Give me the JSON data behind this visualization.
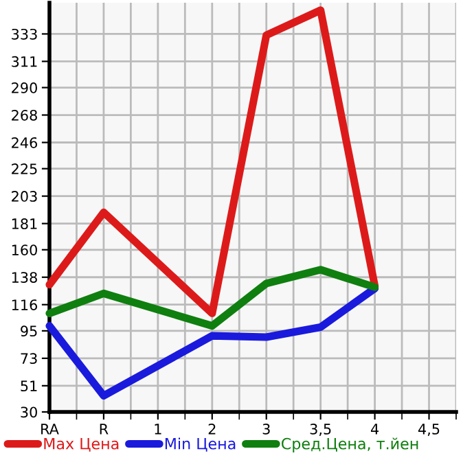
{
  "chart_data": {
    "type": "line",
    "categories": [
      "RA",
      "R",
      "1",
      "2",
      "3",
      "3,5",
      "4",
      "4,5"
    ],
    "series": [
      {
        "name": "Max Цена",
        "color": "#dd1a1a",
        "values": [
          132,
          190,
          null,
          109,
          332,
          352,
          131,
          null
        ]
      },
      {
        "name": "Min Цена",
        "color": "#1a1add",
        "values": [
          99,
          43,
          null,
          91,
          90,
          98,
          129,
          null
        ]
      },
      {
        "name": "Сред.Цена, т.йен",
        "color": "#0f7f0f",
        "values": [
          109,
          125,
          null,
          99,
          133,
          144,
          130,
          null
        ]
      }
    ],
    "ylim": [
      30,
      358
    ],
    "yticks": [
      30,
      51,
      73,
      95,
      116,
      138,
      160,
      181,
      203,
      225,
      246,
      268,
      290,
      311,
      333
    ],
    "grid": true,
    "legend": "bottom",
    "marker": "none",
    "line_style": "solid"
  }
}
